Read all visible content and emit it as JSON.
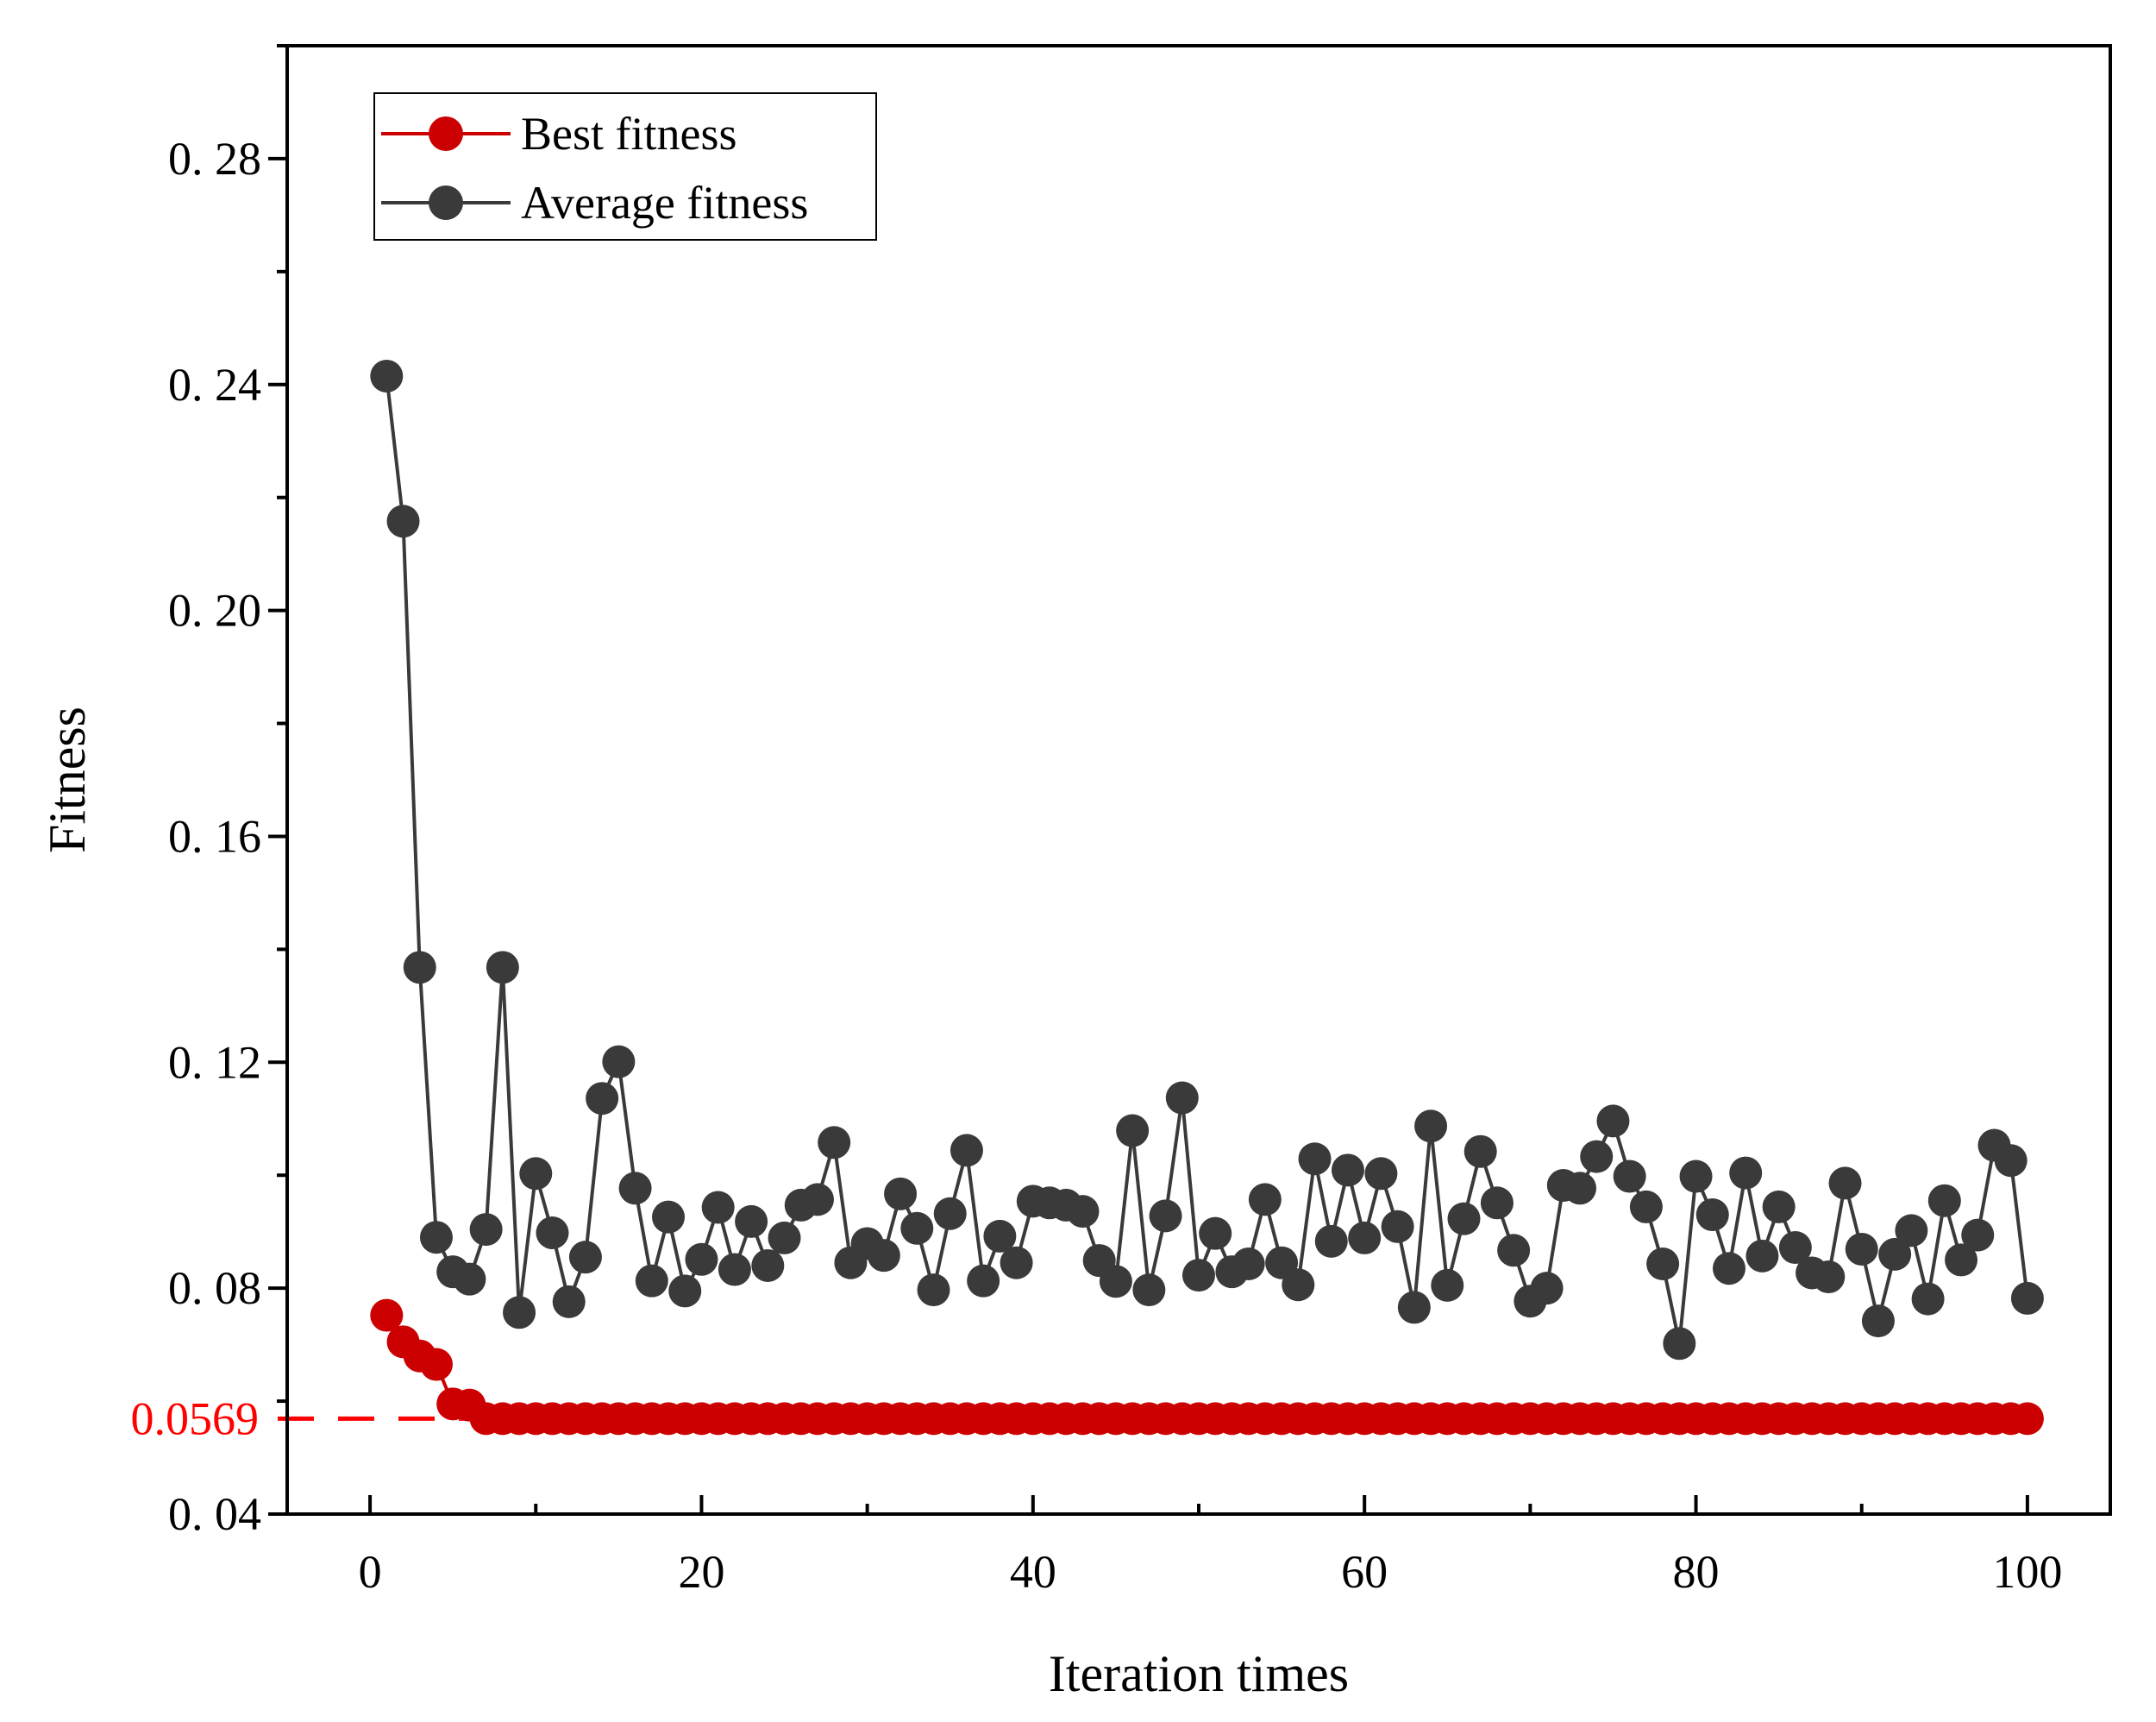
{
  "chart_data": {
    "type": "line",
    "xlabel": "Iteration times",
    "ylabel": "Fitness",
    "xlim": [
      -5,
      105
    ],
    "ylim": [
      0.04,
      0.3
    ],
    "xticks": [
      0,
      20,
      40,
      60,
      80,
      100
    ],
    "xtick_labels": [
      "0",
      "20",
      "40",
      "60",
      "80",
      "100"
    ],
    "yticks": [
      0.04,
      0.08,
      0.12,
      0.16,
      0.2,
      0.24,
      0.28
    ],
    "ytick_labels": [
      "0. 04",
      "0. 08",
      "0. 12",
      "0. 16",
      "0. 20",
      "0. 24",
      "0. 28"
    ],
    "legend_position": "top-left",
    "reference_line": {
      "value": 0.0569,
      "label": "0.0569",
      "color": "#ff0000",
      "style": "dashed"
    },
    "series": [
      {
        "name": "Best fitness",
        "color": "#cc0000",
        "x": [
          1,
          2,
          3,
          4,
          5,
          6,
          7,
          8,
          9,
          10,
          11,
          12,
          13,
          14,
          15,
          16,
          17,
          18,
          19,
          20,
          21,
          22,
          23,
          24,
          25,
          26,
          27,
          28,
          29,
          30,
          31,
          32,
          33,
          34,
          35,
          36,
          37,
          38,
          39,
          40,
          41,
          42,
          43,
          44,
          45,
          46,
          47,
          48,
          49,
          50,
          51,
          52,
          53,
          54,
          55,
          56,
          57,
          58,
          59,
          60,
          61,
          62,
          63,
          64,
          65,
          66,
          67,
          68,
          69,
          70,
          71,
          72,
          73,
          74,
          75,
          76,
          77,
          78,
          79,
          80,
          81,
          82,
          83,
          84,
          85,
          86,
          87,
          88,
          89,
          90,
          91,
          92,
          93,
          94,
          95,
          96,
          97,
          98,
          99,
          100
        ],
        "values": [
          0.0752,
          0.0705,
          0.068,
          0.0665,
          0.0595,
          0.0593,
          0.0569,
          0.0569,
          0.0569,
          0.0569,
          0.0569,
          0.0569,
          0.0569,
          0.0569,
          0.0569,
          0.0569,
          0.0569,
          0.0569,
          0.0569,
          0.0569,
          0.0569,
          0.0569,
          0.0569,
          0.0569,
          0.0569,
          0.0569,
          0.0569,
          0.0569,
          0.0569,
          0.0569,
          0.0569,
          0.0569,
          0.0569,
          0.0569,
          0.0569,
          0.0569,
          0.0569,
          0.0569,
          0.0569,
          0.0569,
          0.0569,
          0.0569,
          0.0569,
          0.0569,
          0.0569,
          0.0569,
          0.0569,
          0.0569,
          0.0569,
          0.0569,
          0.0569,
          0.0569,
          0.0569,
          0.0569,
          0.0569,
          0.0569,
          0.0569,
          0.0569,
          0.0569,
          0.0569,
          0.0569,
          0.0569,
          0.0569,
          0.0569,
          0.0569,
          0.0569,
          0.0569,
          0.0569,
          0.0569,
          0.0569,
          0.0569,
          0.0569,
          0.0569,
          0.0569,
          0.0569,
          0.0569,
          0.0569,
          0.0569,
          0.0569,
          0.0569,
          0.0569,
          0.0569,
          0.0569,
          0.0569,
          0.0569,
          0.0569,
          0.0569,
          0.0569,
          0.0569,
          0.0569,
          0.0569,
          0.0569,
          0.0569,
          0.0569,
          0.0569,
          0.0569,
          0.0569,
          0.0569,
          0.0569,
          0.0569
        ]
      },
      {
        "name": "Average fitness",
        "color": "#3a3a3a",
        "x": [
          1,
          2,
          3,
          4,
          5,
          6,
          7,
          8,
          9,
          10,
          11,
          12,
          13,
          14,
          15,
          16,
          17,
          18,
          19,
          20,
          21,
          22,
          23,
          24,
          25,
          26,
          27,
          28,
          29,
          30,
          31,
          32,
          33,
          34,
          35,
          36,
          37,
          38,
          39,
          40,
          41,
          42,
          43,
          44,
          45,
          46,
          47,
          48,
          49,
          50,
          51,
          52,
          53,
          54,
          55,
          56,
          57,
          58,
          59,
          60,
          61,
          62,
          63,
          64,
          65,
          66,
          67,
          68,
          69,
          70,
          71,
          72,
          73,
          74,
          75,
          76,
          77,
          78,
          79,
          80,
          81,
          82,
          83,
          84,
          85,
          86,
          87,
          88,
          89,
          90,
          91,
          92,
          93,
          94,
          95,
          96,
          97,
          98,
          99,
          100
        ],
        "values": [
          0.2415,
          0.2158,
          0.1368,
          0.089,
          0.0829,
          0.0816,
          0.0904,
          0.1368,
          0.0757,
          0.1003,
          0.0898,
          0.0776,
          0.0855,
          0.1136,
          0.1201,
          0.0977,
          0.0813,
          0.0926,
          0.0795,
          0.0851,
          0.0943,
          0.0833,
          0.0918,
          0.084,
          0.0889,
          0.0947,
          0.0957,
          0.1058,
          0.0845,
          0.0879,
          0.0858,
          0.0967,
          0.0906,
          0.0797,
          0.0932,
          0.1044,
          0.0813,
          0.0892,
          0.0845,
          0.0954,
          0.0951,
          0.0947,
          0.0936,
          0.0849,
          0.0812,
          0.1079,
          0.0797,
          0.0928,
          0.1137,
          0.0823,
          0.0897,
          0.0829,
          0.0843,
          0.0957,
          0.0845,
          0.0806,
          0.1029,
          0.0883,
          0.1009,
          0.0889,
          0.1003,
          0.0909,
          0.0766,
          0.1087,
          0.0805,
          0.0923,
          0.1042,
          0.0951,
          0.0867,
          0.0777,
          0.08,
          0.0982,
          0.0977,
          0.1033,
          0.1096,
          0.0998,
          0.0944,
          0.0843,
          0.0702,
          0.0998,
          0.093,
          0.0835,
          0.1004,
          0.0857,
          0.0944,
          0.0872,
          0.0827,
          0.082,
          0.0986,
          0.0869,
          0.0742,
          0.086,
          0.0902,
          0.0781,
          0.0955,
          0.085,
          0.0894,
          0.1053,
          0.1026,
          0.0782
        ]
      }
    ]
  }
}
